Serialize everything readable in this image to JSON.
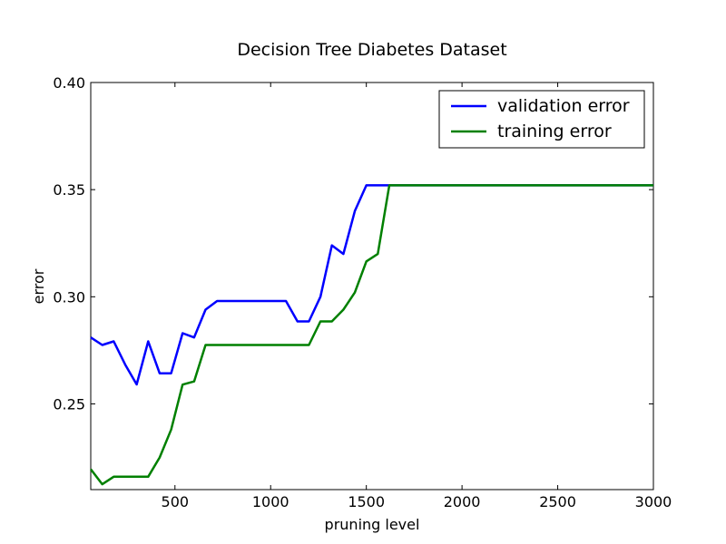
{
  "chart_data": {
    "type": "line",
    "title": "Decision Tree Diabetes Dataset",
    "xlabel": "pruning level",
    "ylabel": "error",
    "xlim": [
      60,
      3000
    ],
    "ylim": [
      0.21,
      0.4
    ],
    "xticks": [
      500,
      1000,
      1500,
      2000,
      2500,
      3000
    ],
    "xtick_labels": [
      "500",
      "1000",
      "1500",
      "2000",
      "2500",
      "3000"
    ],
    "yticks": [
      0.25,
      0.3,
      0.35,
      0.4
    ],
    "ytick_labels": [
      "0.25",
      "0.30",
      "0.35",
      "0.40"
    ],
    "grid": false,
    "legend_position": "top-right",
    "series": [
      {
        "name": "validation error",
        "color": "#0000ff",
        "x": [
          60,
          120,
          180,
          240,
          300,
          360,
          420,
          480,
          540,
          600,
          660,
          720,
          780,
          840,
          900,
          960,
          1020,
          1080,
          1140,
          1200,
          1260,
          1320,
          1380,
          1440,
          1500,
          1560,
          1620,
          1680,
          3000
        ],
        "y": [
          0.281,
          0.2775,
          0.2792,
          0.2683,
          0.2591,
          0.2792,
          0.2643,
          0.2643,
          0.283,
          0.281,
          0.294,
          0.298,
          0.298,
          0.298,
          0.298,
          0.298,
          0.298,
          0.298,
          0.2885,
          0.2885,
          0.3,
          0.324,
          0.32,
          0.34,
          0.352,
          0.352,
          0.352,
          0.352,
          0.352
        ]
      },
      {
        "name": "training error",
        "color": "#008000",
        "x": [
          60,
          120,
          180,
          240,
          300,
          360,
          420,
          480,
          540,
          600,
          660,
          720,
          780,
          840,
          900,
          960,
          1020,
          1080,
          1140,
          1200,
          1260,
          1320,
          1380,
          1440,
          1500,
          1560,
          1620,
          1680,
          3000
        ],
        "y": [
          0.2195,
          0.2125,
          0.216,
          0.216,
          0.216,
          0.216,
          0.225,
          0.238,
          0.259,
          0.2605,
          0.2775,
          0.2775,
          0.2775,
          0.2775,
          0.2775,
          0.2775,
          0.2775,
          0.2775,
          0.2775,
          0.2775,
          0.2885,
          0.2885,
          0.294,
          0.302,
          0.3165,
          0.32,
          0.352,
          0.352,
          0.352
        ]
      }
    ]
  }
}
